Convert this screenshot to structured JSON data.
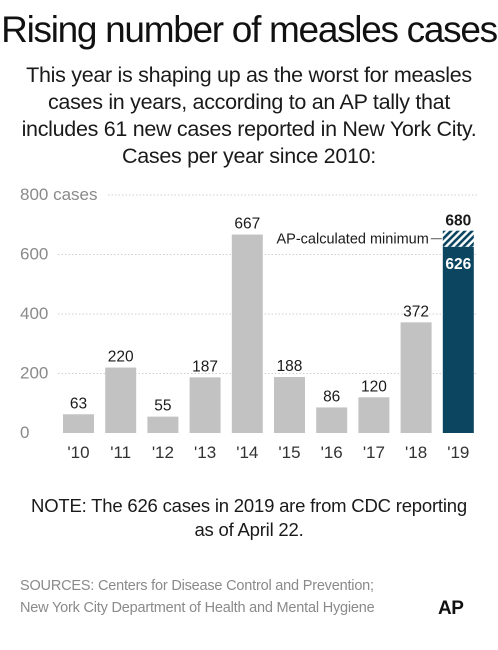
{
  "title": "Rising number of measles cases",
  "subtitle": "This year is shaping up as the worst for measles cases in years, according to an AP tally that includes 61 new cases reported in New York City. Cases per year since 2010:",
  "note": "NOTE: The 626 cases in 2019 are from CDC reporting as of April 22.",
  "sources": [
    "SOURCES: Centers for Disease Control and Prevention;",
    "New York City Department of Health and Mental Hygiene"
  ],
  "logo": "AP",
  "colors": {
    "bar": "#c2c2c2",
    "highlight": "#0b4560",
    "grid": "#cfcfcf",
    "tick": "#8a8a8a",
    "label": "#1a1a1a"
  },
  "chart_data": {
    "type": "bar",
    "categories": [
      "'10",
      "'11",
      "'12",
      "'13",
      "'14",
      "'15",
      "'16",
      "'17",
      "'18",
      "'19"
    ],
    "values": [
      63,
      220,
      55,
      187,
      667,
      188,
      86,
      120,
      372,
      626
    ],
    "data_labels": [
      "63",
      "220",
      "55",
      "187",
      "667",
      "188",
      "86",
      "120",
      "372",
      "626"
    ],
    "highlight_index": 9,
    "extension": {
      "index": 9,
      "value": 680,
      "label": "680",
      "annotation": "AP-calculated minimum"
    },
    "yticks": [
      0,
      200,
      400,
      600,
      800
    ],
    "ytick_labels": [
      "0",
      "200",
      "400",
      "600",
      "800 cases"
    ],
    "ylim": [
      0,
      800
    ],
    "grid": true
  }
}
